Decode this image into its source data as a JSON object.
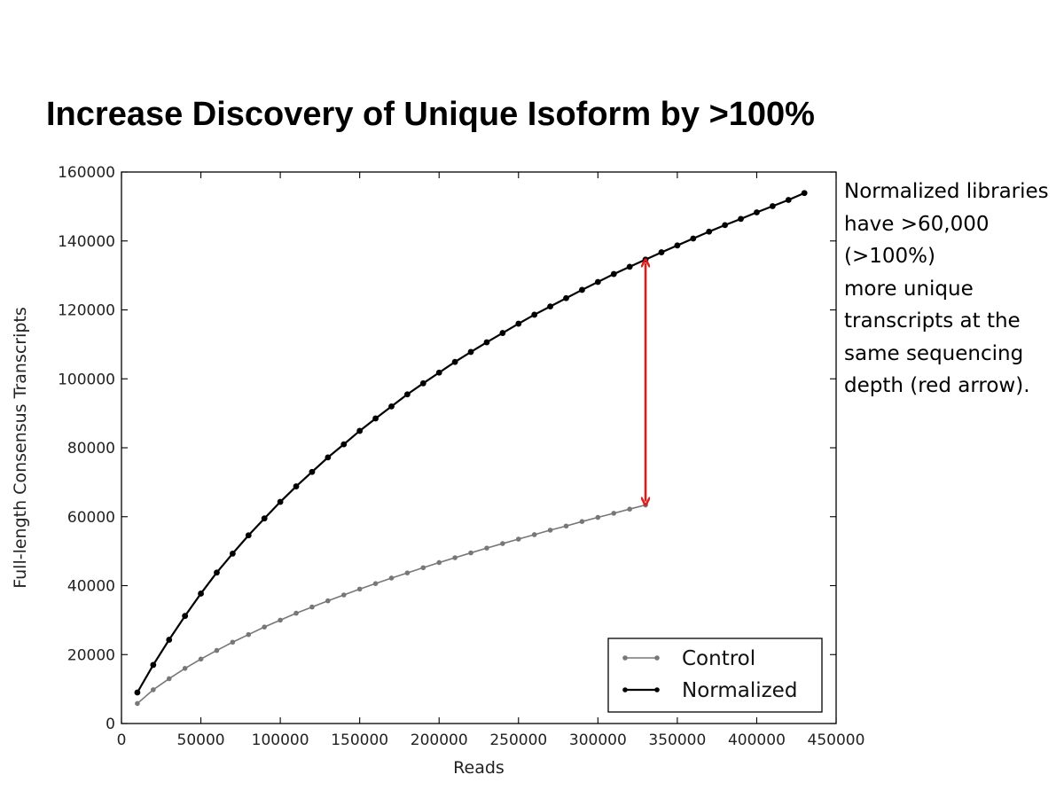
{
  "title": "Increase Discovery of Unique Isoform by >100%",
  "annotation_lines": [
    "Normalized libraries",
    "have >60,000",
    "(>100%)",
    "more unique",
    "transcripts at the",
    "same sequencing",
    "depth (red arrow)."
  ],
  "colors": {
    "control": "#777777",
    "normalized": "#000000",
    "arrow": "#e11a1a"
  },
  "chart_data": {
    "type": "line",
    "xlabel": "Reads",
    "ylabel": "Full-length Consensus Transcripts",
    "xlim": [
      0,
      450000
    ],
    "ylim": [
      0,
      160000
    ],
    "xticks": [
      0,
      50000,
      100000,
      150000,
      200000,
      250000,
      300000,
      350000,
      400000,
      450000
    ],
    "yticks": [
      0,
      20000,
      40000,
      60000,
      80000,
      100000,
      120000,
      140000,
      160000
    ],
    "grid": false,
    "legend_position": "lower-right",
    "series": [
      {
        "name": "Control",
        "x": [
          10000,
          20000,
          30000,
          40000,
          50000,
          60000,
          70000,
          80000,
          90000,
          100000,
          110000,
          120000,
          130000,
          140000,
          150000,
          160000,
          170000,
          180000,
          190000,
          200000,
          210000,
          220000,
          230000,
          240000,
          250000,
          260000,
          270000,
          280000,
          290000,
          300000,
          310000,
          320000,
          330000
        ],
        "values": [
          5800,
          9800,
          13000,
          16000,
          18700,
          21200,
          23600,
          25800,
          28000,
          30000,
          32000,
          33800,
          35600,
          37300,
          39000,
          40600,
          42200,
          43700,
          45200,
          46700,
          48100,
          49500,
          50900,
          52200,
          53500,
          54800,
          56100,
          57300,
          58600,
          59800,
          61000,
          62200,
          63400
        ]
      },
      {
        "name": "Normalized",
        "x": [
          10000,
          20000,
          30000,
          40000,
          50000,
          60000,
          70000,
          80000,
          90000,
          100000,
          110000,
          120000,
          130000,
          140000,
          150000,
          160000,
          170000,
          180000,
          190000,
          200000,
          210000,
          220000,
          230000,
          240000,
          250000,
          260000,
          270000,
          280000,
          290000,
          300000,
          310000,
          320000,
          330000,
          340000,
          350000,
          360000,
          370000,
          380000,
          390000,
          400000,
          410000,
          420000,
          430000
        ],
        "values": [
          9000,
          17000,
          24300,
          31200,
          37700,
          43800,
          49300,
          54600,
          59500,
          64300,
          68800,
          73000,
          77200,
          81000,
          84900,
          88500,
          92000,
          95500,
          98700,
          101800,
          104900,
          107800,
          110600,
          113300,
          116000,
          118600,
          121000,
          123400,
          125800,
          128100,
          130400,
          132500,
          134600,
          136700,
          138700,
          140700,
          142700,
          144600,
          146400,
          148300,
          150100,
          151900,
          153900
        ]
      }
    ],
    "annotations": [
      {
        "type": "double-arrow",
        "x": 330000,
        "y_from": 63400,
        "y_to": 134600,
        "color": "red"
      }
    ]
  }
}
